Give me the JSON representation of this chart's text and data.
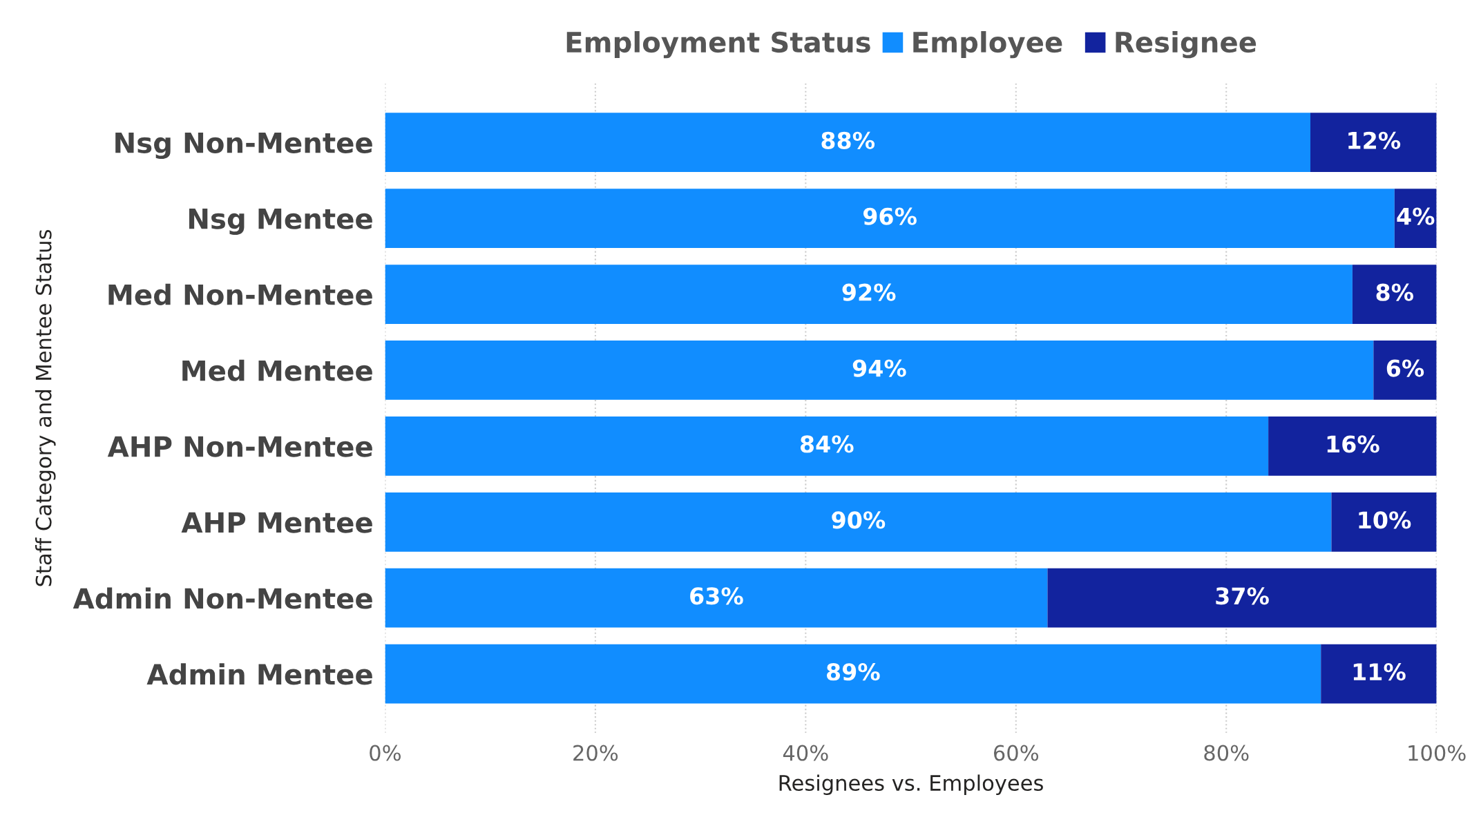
{
  "chart_data": {
    "type": "bar",
    "orientation": "horizontal",
    "stacked": true,
    "xlabel": "Resignees vs. Employees",
    "ylabel": "Staff Category and Mentee Status",
    "legend_title": "Employment Status",
    "categories": [
      "Nsg Non-Mentee",
      "Nsg Mentee",
      "Med Non-Mentee",
      "Med Mentee",
      "AHP Non-Mentee",
      "AHP Mentee",
      "Admin Non-Mentee",
      "Admin Mentee"
    ],
    "series": [
      {
        "name": "Employee",
        "color": "#118dff",
        "values": [
          88,
          96,
          92,
          94,
          84,
          90,
          63,
          89
        ],
        "value_labels": [
          "88%",
          "96%",
          "92%",
          "94%",
          "84%",
          "90%",
          "63%",
          "89%"
        ]
      },
      {
        "name": "Resignee",
        "color": "#12239e",
        "values": [
          12,
          4,
          8,
          6,
          16,
          10,
          37,
          11
        ],
        "value_labels": [
          "12%",
          "4%",
          "8%",
          "6%",
          "16%",
          "10%",
          "37%",
          "11%"
        ]
      }
    ],
    "xlim": [
      0,
      100
    ],
    "xticks": [
      {
        "value": 0,
        "label": "0%"
      },
      {
        "value": 20,
        "label": "20%"
      },
      {
        "value": 40,
        "label": "40%"
      },
      {
        "value": 60,
        "label": "60%"
      },
      {
        "value": 80,
        "label": "80%"
      },
      {
        "value": 100,
        "label": "100%"
      }
    ],
    "grid": "x",
    "legend": "top"
  }
}
